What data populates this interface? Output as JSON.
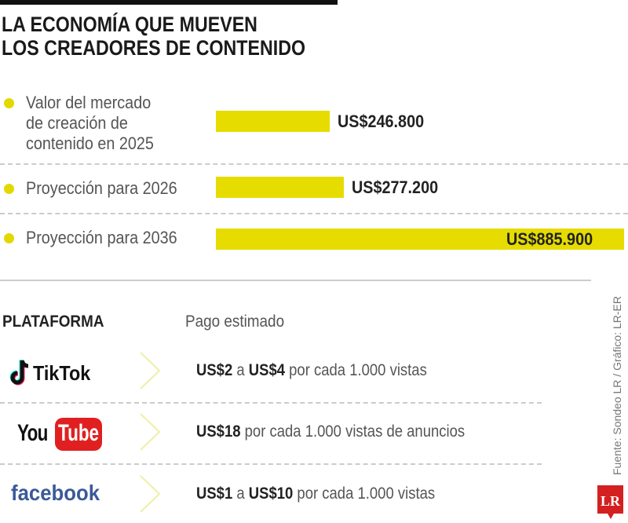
{
  "title_line1": "LA ECONOMÍA QUE MUEVEN",
  "title_line2": "LOS CREADORES DE CONTENIDO",
  "chart_data": {
    "type": "bar",
    "orientation": "horizontal",
    "categories": [
      "Valor del mercado de creación de contenido en 2025",
      "Proyección para 2026",
      "Proyección para 2036"
    ],
    "category_lines": [
      [
        "Valor del mercado",
        "de creación de",
        "contenido en 2025"
      ],
      [
        "Proyección para 2026"
      ],
      [
        "Proyección para 2036"
      ]
    ],
    "values": [
      246800,
      277200,
      885900
    ],
    "value_labels": [
      "US$246.800",
      "US$277.200",
      "US$885.900"
    ],
    "bar_color": "#e6dc00"
  },
  "table": {
    "header_platform": "PLATAFORMA",
    "header_payment": "Pago estimado",
    "rows": [
      {
        "platform": "TikTok",
        "parts": [
          [
            "US$2",
            true
          ],
          [
            " a ",
            false
          ],
          [
            "US$4",
            true
          ],
          [
            " por cada 1.000 vistas",
            false
          ]
        ]
      },
      {
        "platform": "YouTube",
        "parts": [
          [
            "US$18",
            true
          ],
          [
            " por cada 1.000 vistas de anuncios",
            false
          ]
        ]
      },
      {
        "platform": "facebook",
        "parts": [
          [
            "US$1",
            true
          ],
          [
            " a ",
            false
          ],
          [
            "US$10",
            true
          ],
          [
            " por cada 1.000 vistas",
            false
          ]
        ]
      }
    ]
  },
  "source": "Fuente: Sondeo LR / Gráfico: LR-ER",
  "logo": "LR",
  "colors": {
    "accent": "#e6dc00",
    "youtube": "#e02020",
    "facebook": "#3b5998",
    "logo": "#d42020"
  }
}
